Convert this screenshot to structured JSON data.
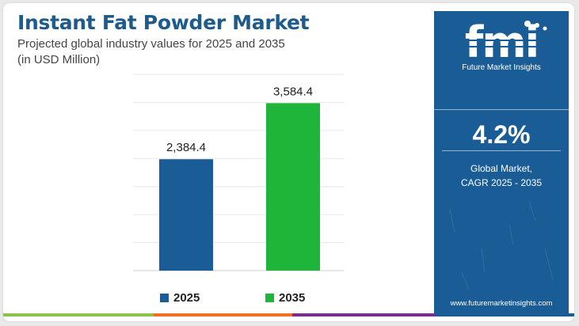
{
  "header": {
    "title": "Instant Fat Powder Market",
    "subtitle_line1": "Projected global industry values for 2025 and 2035",
    "subtitle_line2": "(in USD Million)"
  },
  "chart_data": {
    "type": "bar",
    "categories": [
      "2025",
      "2035"
    ],
    "values": [
      2384.4,
      3584.4
    ],
    "value_labels": [
      "2,384.4",
      "3,584.4"
    ],
    "colors": [
      "#1a5d96",
      "#1fb43a"
    ],
    "ylim": [
      0,
      4200
    ],
    "grid": true,
    "legend_position": "bottom"
  },
  "legend": {
    "items": [
      {
        "label": "2025",
        "color": "#1a5d96"
      },
      {
        "label": "2035",
        "color": "#1fb43a"
      }
    ]
  },
  "sidebar": {
    "logo_mark": "fmi",
    "logo_text": "Future Market Insights",
    "cagr_value": "4.2%",
    "cagr_label_line1": "Global Market,",
    "cagr_label_line2": "CAGR 2025 - 2035",
    "website": "www.futuremarketinsights.com",
    "background": "#1a5d96"
  },
  "bottom_bar": {
    "colors": [
      "#8bc34a",
      "#f36f21",
      "#7b2c8f",
      "#1a5d96"
    ]
  }
}
